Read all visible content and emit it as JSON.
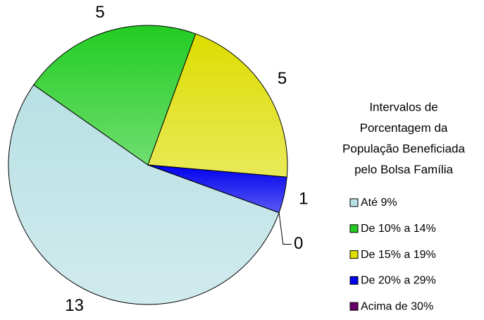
{
  "chart_data": {
    "type": "pie",
    "categories": [
      "Até 9%",
      "De 10% a 14%",
      "De 15% a 19%",
      "De 20% a 29%",
      "Acima de 30%"
    ],
    "values": [
      13,
      5,
      5,
      1,
      0
    ],
    "colors": [
      "#b8e0e4",
      "#22cc22",
      "#dddd00",
      "#0000ee",
      "#660066"
    ],
    "legend_title": [
      "Intervalos de",
      "Porcentagem da",
      "População Beneficiada",
      "pelo Bolsa Família"
    ],
    "legend": "right"
  }
}
